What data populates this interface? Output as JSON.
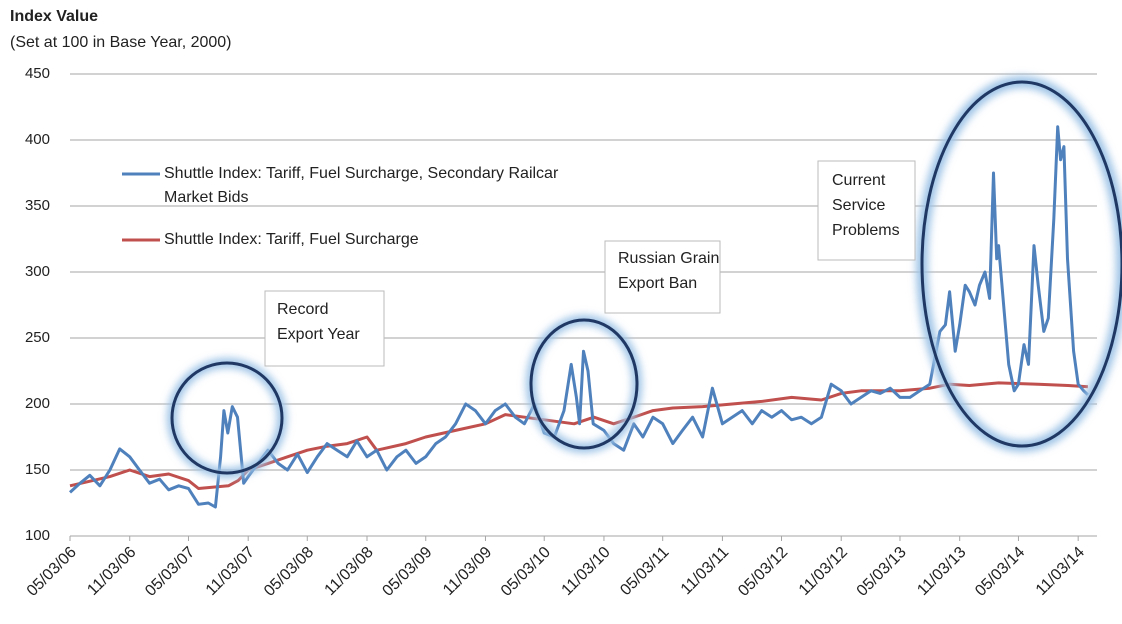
{
  "chart_data": {
    "type": "line",
    "title": "Index Value",
    "subtitle": "(Set at 100 in Base Year, 2000)",
    "ylim": [
      100,
      450
    ],
    "yticks": [
      100,
      150,
      200,
      250,
      300,
      350,
      400,
      450
    ],
    "grid": true,
    "xlim": [
      "05/03/06",
      "12/31/14"
    ],
    "xticks": [
      "05/03/06",
      "11/03/06",
      "05/03/07",
      "11/03/07",
      "05/03/08",
      "11/03/08",
      "05/03/09",
      "11/03/09",
      "05/03/10",
      "11/03/10",
      "05/03/11",
      "11/03/11",
      "05/03/12",
      "11/03/12",
      "05/03/13",
      "11/03/13",
      "05/03/14",
      "11/03/14"
    ],
    "annotations": [
      [
        "Record",
        "Export Year"
      ],
      [
        "Russian Grain",
        "Export Ban"
      ],
      [
        "Current",
        "Service",
        "Problems"
      ]
    ],
    "series": [
      {
        "name": "Shuttle Index: Tariff, Fuel Surcharge, Secondary Railcar Market Bids",
        "color": "#4f81bd",
        "x": [
          "05/03/06",
          "06/03/06",
          "07/03/06",
          "08/03/06",
          "09/03/06",
          "10/03/06",
          "11/03/06",
          "12/03/06",
          "01/03/07",
          "02/03/07",
          "03/03/07",
          "04/03/07",
          "05/03/07",
          "06/03/07",
          "07/03/07",
          "07/25/07",
          "08/10/07",
          "08/20/07",
          "09/01/07",
          "09/15/07",
          "10/01/07",
          "10/20/07",
          "11/03/07",
          "12/03/07",
          "01/03/08",
          "02/03/08",
          "03/03/08",
          "04/03/08",
          "05/03/08",
          "06/03/08",
          "07/03/08",
          "08/03/08",
          "09/03/08",
          "10/03/08",
          "11/03/08",
          "12/03/08",
          "01/03/09",
          "02/03/09",
          "03/03/09",
          "04/03/09",
          "05/03/09",
          "06/03/09",
          "07/03/09",
          "08/03/09",
          "09/03/09",
          "10/03/09",
          "11/03/09",
          "12/03/09",
          "01/03/10",
          "02/03/10",
          "03/03/10",
          "04/03/10",
          "05/03/10",
          "06/03/10",
          "07/03/10",
          "07/25/10",
          "08/10/10",
          "08/20/10",
          "09/01/10",
          "09/15/10",
          "10/01/10",
          "11/03/10",
          "12/03/10",
          "01/03/11",
          "02/03/11",
          "03/03/11",
          "04/03/11",
          "05/03/11",
          "06/03/11",
          "07/03/11",
          "08/03/11",
          "09/03/11",
          "10/03/11",
          "11/03/11",
          "12/03/11",
          "01/03/12",
          "02/03/12",
          "03/03/12",
          "04/03/12",
          "05/03/12",
          "06/03/12",
          "07/03/12",
          "08/03/12",
          "09/03/12",
          "10/03/12",
          "11/03/12",
          "12/03/12",
          "01/03/13",
          "02/03/13",
          "03/03/13",
          "04/03/13",
          "05/03/13",
          "06/03/13",
          "07/03/13",
          "08/03/13",
          "09/03/13",
          "09/20/13",
          "10/03/13",
          "10/20/13",
          "11/03/13",
          "11/20/13",
          "12/03/13",
          "12/20/13",
          "01/03/14",
          "01/20/14",
          "02/03/14",
          "02/15/14",
          "02/25/14",
          "03/03/14",
          "03/20/14",
          "04/03/14",
          "04/20/14",
          "05/03/14",
          "05/20/14",
          "06/03/14",
          "06/20/14",
          "07/03/14",
          "07/20/14",
          "08/03/14",
          "08/20/14",
          "09/01/14",
          "09/10/14",
          "09/20/14",
          "10/01/14",
          "10/20/14",
          "11/03/14",
          "11/20/14",
          "12/03/14"
        ],
        "values": [
          133,
          140,
          146,
          138,
          150,
          166,
          160,
          150,
          140,
          143,
          135,
          138,
          136,
          124,
          125,
          122,
          160,
          195,
          178,
          198,
          190,
          140,
          145,
          155,
          165,
          155,
          150,
          162,
          148,
          160,
          170,
          165,
          160,
          172,
          160,
          165,
          150,
          160,
          165,
          155,
          160,
          170,
          175,
          185,
          200,
          195,
          185,
          195,
          200,
          190,
          185,
          200,
          178,
          175,
          195,
          230,
          205,
          185,
          240,
          225,
          185,
          180,
          170,
          165,
          185,
          175,
          190,
          185,
          170,
          180,
          190,
          175,
          212,
          185,
          190,
          195,
          185,
          195,
          190,
          195,
          188,
          190,
          185,
          190,
          215,
          210,
          200,
          205,
          210,
          208,
          212,
          205,
          205,
          210,
          215,
          255,
          260,
          285,
          240,
          260,
          290,
          285,
          275,
          290,
          300,
          280,
          375,
          310,
          320,
          270,
          230,
          210,
          215,
          245,
          230,
          320,
          290,
          255,
          265,
          340,
          410,
          385,
          395,
          310,
          240,
          215,
          210,
          207
        ]
      },
      {
        "name": "Shuttle Index: Tariff, Fuel Surcharge",
        "color": "#c0504d",
        "x": [
          "05/03/06",
          "09/03/06",
          "11/03/06",
          "01/03/07",
          "03/03/07",
          "05/03/07",
          "06/03/07",
          "09/03/07",
          "10/03/07",
          "11/03/07",
          "01/03/08",
          "03/03/08",
          "05/03/08",
          "07/03/08",
          "09/03/08",
          "11/03/08",
          "12/03/08",
          "03/03/09",
          "05/03/09",
          "08/03/09",
          "11/03/09",
          "01/03/10",
          "05/03/10",
          "08/03/10",
          "10/03/10",
          "12/03/10",
          "02/03/11",
          "04/03/11",
          "06/03/11",
          "09/03/11",
          "12/03/11",
          "03/03/12",
          "06/03/12",
          "09/03/12",
          "11/03/12",
          "01/03/13",
          "05/03/13",
          "08/03/13",
          "10/03/13",
          "12/03/13",
          "03/03/14",
          "07/03/14",
          "10/03/14",
          "12/03/14"
        ],
        "values": [
          138,
          145,
          150,
          145,
          147,
          142,
          136,
          138,
          142,
          150,
          155,
          160,
          165,
          168,
          170,
          175,
          165,
          170,
          175,
          180,
          185,
          192,
          188,
          185,
          190,
          185,
          190,
          195,
          197,
          198,
          200,
          202,
          205,
          203,
          208,
          210,
          210,
          212,
          215,
          214,
          216,
          215,
          214,
          213
        ]
      }
    ]
  }
}
